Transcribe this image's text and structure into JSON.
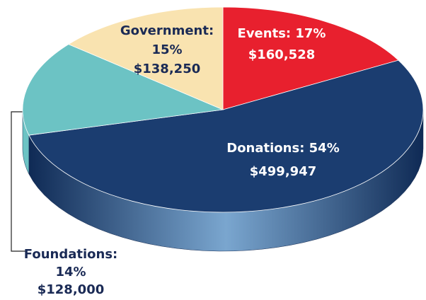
{
  "chart_data": {
    "type": "pie",
    "categories": [
      "Events",
      "Donations",
      "Government",
      "Foundations"
    ],
    "values": [
      17,
      54,
      15,
      14
    ],
    "value_labels": [
      [
        "Events: 17%"
      ],
      [
        "Donations: 54%"
      ],
      [
        "Government:",
        "15%"
      ],
      [
        "Foundations:",
        "14%"
      ]
    ],
    "amounts": [
      160528,
      499947,
      138250,
      128000
    ],
    "amount_labels": [
      "$160,528",
      "$499,947",
      "$138,250",
      "$128,000"
    ],
    "colors": [
      "#e8202e",
      "#1b3d70",
      "#6cc3c4",
      "#f9e3b0"
    ]
  }
}
